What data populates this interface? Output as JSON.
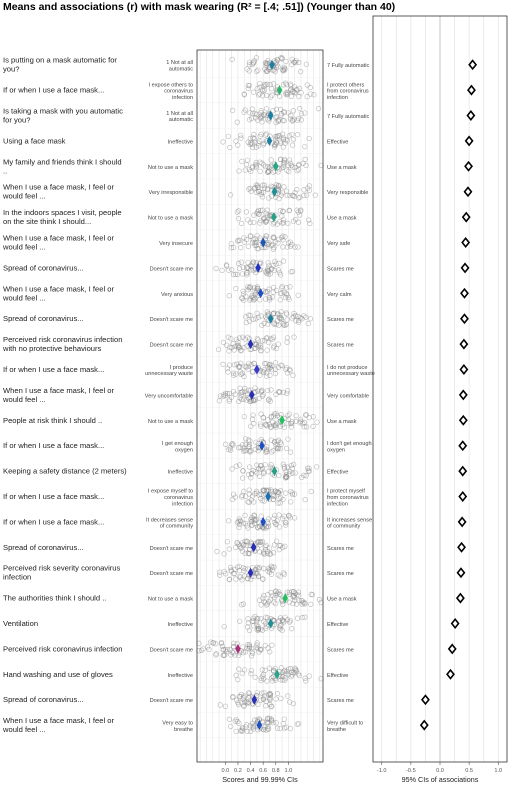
{
  "chart_data": {
    "type": "scatter",
    "title": "Means and associations (r) with mask wearing (R² = [.4; .51]) (Younger than 40)",
    "panels": [
      {
        "name": "scores",
        "xlabel": "Scores and 99.99% CIs",
        "xlim": [
          -0.45,
          1.55
        ],
        "ticks": [
          0.0,
          0.2,
          0.4,
          0.6,
          0.8,
          1.0
        ],
        "tick_labels": [
          "0.0",
          "0.2",
          "0.4",
          "0.6",
          "0.8",
          "1.0"
        ]
      },
      {
        "name": "associations",
        "xlabel": "95% CIs of associations",
        "xlim": [
          -1.15,
          1.15
        ],
        "ticks": [
          -1.0,
          -0.5,
          0.0,
          0.5,
          1.0
        ],
        "tick_labels": [
          "-1.0",
          "-0.5",
          "0.0",
          "0.5",
          "1.0"
        ]
      }
    ],
    "rows": [
      {
        "label": "Is putting on a mask automatic for you?",
        "anchor_low": "1 Not at all automatic",
        "anchor_high": "7 Fully automatic",
        "mean": 0.74,
        "color": "#1e7fa0",
        "r": 0.56
      },
      {
        "label": "If or when I use a face mask...",
        "anchor_low": "I expose others to coronavirus infection",
        "anchor_high": "I protect others from coronavirus infection",
        "mean": 0.86,
        "color": "#2db36b",
        "r": 0.54
      },
      {
        "label": "Is taking a mask with you automatic for you?",
        "anchor_low": "1 Not at all automatic",
        "anchor_high": "7 Fully automatic",
        "mean": 0.72,
        "color": "#1e7fa0",
        "r": 0.53
      },
      {
        "label": "Using a face mask",
        "anchor_low": "Ineffective",
        "anchor_high": "Effective",
        "mean": 0.7,
        "color": "#1e7fa0",
        "r": 0.5
      },
      {
        "label": "My family and friends think I should ..",
        "anchor_low": "Not to use a mask",
        "anchor_high": "Use a mask",
        "mean": 0.8,
        "color": "#2aa58a",
        "r": 0.49
      },
      {
        "label": "When I use a face mask, I feel or would feel ...",
        "anchor_low": "Very irresponsible",
        "anchor_high": "Very responsible",
        "mean": 0.78,
        "color": "#1e8f95",
        "r": 0.48
      },
      {
        "label": "In the indoors spaces I visit, people on the site think I should...",
        "anchor_low": "Not to use a mask",
        "anchor_high": "Use a mask",
        "mean": 0.77,
        "color": "#2a9f85",
        "r": 0.45
      },
      {
        "label": "When I use a face mask, I feel or would feel ...",
        "anchor_low": "Very insecure",
        "anchor_high": "Very safe",
        "mean": 0.6,
        "color": "#1f55b5",
        "r": 0.44
      },
      {
        "label": "Spread of coronavirus...",
        "anchor_low": "Doesn't scare me",
        "anchor_high": "Scares me",
        "mean": 0.52,
        "color": "#2233c0",
        "r": 0.43
      },
      {
        "label": "When I use a face mask, I feel or would feel ...",
        "anchor_low": "Very anxious",
        "anchor_high": "Very calm",
        "mean": 0.56,
        "color": "#1f4fc0",
        "r": 0.42
      },
      {
        "label": "Spread of coronavirus...",
        "anchor_low": "Doesn't scare me",
        "anchor_high": "Scares me",
        "mean": 0.72,
        "color": "#1e7fa0",
        "r": 0.42
      },
      {
        "label": "Perceived risk coronavirus infection with no protective behaviours",
        "anchor_low": "Doesn't scare me",
        "anchor_high": "Scares me",
        "mean": 0.4,
        "color": "#2a2fb5",
        "r": 0.41
      },
      {
        "label": "If or when I use a face mask...",
        "anchor_low": "I produce unnecessary waste",
        "anchor_high": "I do not produce unnecessary waste",
        "mean": 0.5,
        "color": "#3a3ac8",
        "r": 0.41
      },
      {
        "label": "When I use a face mask, I feel or would feel ...",
        "anchor_low": "Very uncomfortable",
        "anchor_high": "Very comfortable",
        "mean": 0.42,
        "color": "#2a2fb5",
        "r": 0.4
      },
      {
        "label": "People at risk think I should ..",
        "anchor_low": "Not to use a mask",
        "anchor_high": "Use a mask",
        "mean": 0.9,
        "color": "#27c060",
        "r": 0.4
      },
      {
        "label": "If or when I use a face mask...",
        "anchor_low": "I get enough oxygen",
        "anchor_high": "I don't get enough oxygen",
        "mean": 0.58,
        "color": "#1f4fc0",
        "r": 0.39
      },
      {
        "label": "Keeping a safety distance (2 meters)",
        "anchor_low": "Ineffective",
        "anchor_high": "Effective",
        "mean": 0.78,
        "color": "#2a9f85",
        "r": 0.39
      },
      {
        "label": "If or when I use a face mask...",
        "anchor_low": "I expose myself to coronavirus infection",
        "anchor_high": "I protect myself from coronavirus infection",
        "mean": 0.68,
        "color": "#1e6fb0",
        "r": 0.39
      },
      {
        "label": "If or when I use a face mask...",
        "anchor_low": "It decreases sense of community",
        "anchor_high": "It increases sense of community",
        "mean": 0.6,
        "color": "#1f4fc0",
        "r": 0.38
      },
      {
        "label": "Spread of coronavirus...",
        "anchor_low": "Doesn't scare me",
        "anchor_high": "Scares me",
        "mean": 0.45,
        "color": "#2a2fb5",
        "r": 0.37
      },
      {
        "label": "Perceived risk severity coronavirus infection",
        "anchor_low": "Doesn't scare me",
        "anchor_high": "Scares me",
        "mean": 0.4,
        "color": "#2a2fb5",
        "r": 0.36
      },
      {
        "label": "The authorities think I should ..",
        "anchor_low": "Not to use a mask",
        "anchor_high": "Use a mask",
        "mean": 0.95,
        "color": "#27c060",
        "r": 0.35
      },
      {
        "label": "Ventilation",
        "anchor_low": "Ineffective",
        "anchor_high": "Effective",
        "mean": 0.72,
        "color": "#1e8f95",
        "r": 0.26
      },
      {
        "label": "Perceived risk coronavirus infection",
        "anchor_low": "Doesn't scare me",
        "anchor_high": "Scares me",
        "mean": 0.2,
        "color": "#a8327a",
        "r": 0.21
      },
      {
        "label": "Hand washing and use of gloves",
        "anchor_low": "Ineffective",
        "anchor_high": "Effective",
        "mean": 0.82,
        "color": "#2aa58a",
        "r": 0.18
      },
      {
        "label": "Spread of coronavirus...",
        "anchor_low": "Doesn't scare me",
        "anchor_high": "Scares me",
        "mean": 0.46,
        "color": "#2a2fb5",
        "r": -0.25
      },
      {
        "label": "When I use a face mask, I feel or would feel ...",
        "anchor_low": "Very easy to breathe",
        "anchor_high": "Very difficult to breathe",
        "mean": 0.54,
        "color": "#1f4fc0",
        "r": -0.27
      }
    ]
  }
}
